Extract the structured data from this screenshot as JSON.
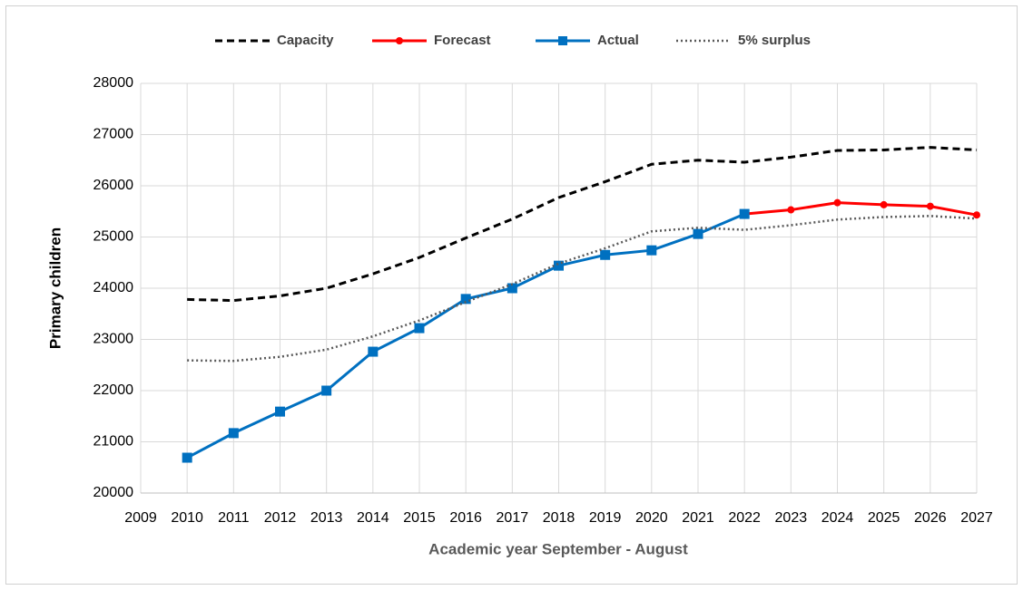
{
  "chart_data": {
    "type": "line",
    "x_label": "Academic year September - August",
    "y_label": "Primary children",
    "x": [
      2010,
      2011,
      2012,
      2013,
      2014,
      2015,
      2016,
      2017,
      2018,
      2019,
      2020,
      2021,
      2022,
      2023,
      2024,
      2025,
      2026,
      2027
    ],
    "series": [
      {
        "name": "Capacity",
        "color": "#000000",
        "style": "dashed",
        "marker": "none",
        "values": [
          23780,
          23760,
          23850,
          24000,
          24280,
          24600,
          24980,
          25350,
          25770,
          26080,
          26420,
          26500,
          26460,
          26560,
          26690,
          26700,
          26750,
          26700
        ]
      },
      {
        "name": "Forecast",
        "color": "#ff0000",
        "style": "solid",
        "marker": "circle",
        "values": [
          null,
          null,
          null,
          null,
          null,
          null,
          null,
          null,
          null,
          null,
          null,
          null,
          25450,
          25530,
          25670,
          25630,
          25600,
          25430
        ]
      },
      {
        "name": "Actual",
        "color": "#0070c0",
        "style": "solid",
        "marker": "square",
        "values": [
          20690,
          21170,
          21590,
          22000,
          22760,
          23220,
          23790,
          24000,
          24440,
          24650,
          24740,
          25060,
          25450,
          null,
          null,
          null,
          null,
          null
        ]
      },
      {
        "name": "5% surplus",
        "color": "#595959",
        "style": "dotted",
        "marker": "none",
        "values": [
          22590,
          22580,
          22660,
          22800,
          23060,
          23370,
          23730,
          24080,
          24480,
          24780,
          25110,
          25180,
          25140,
          25230,
          25340,
          25390,
          25410,
          25360
        ]
      }
    ],
    "xlim": [
      2009,
      2027
    ],
    "xticks": [
      2009,
      2010,
      2011,
      2012,
      2013,
      2014,
      2015,
      2016,
      2017,
      2018,
      2019,
      2020,
      2021,
      2022,
      2023,
      2024,
      2025,
      2026,
      2027
    ],
    "ylim": [
      20000,
      28000
    ],
    "yticks": [
      20000,
      21000,
      22000,
      23000,
      24000,
      25000,
      26000,
      27000,
      28000
    ],
    "grid": true,
    "legend": "top"
  }
}
